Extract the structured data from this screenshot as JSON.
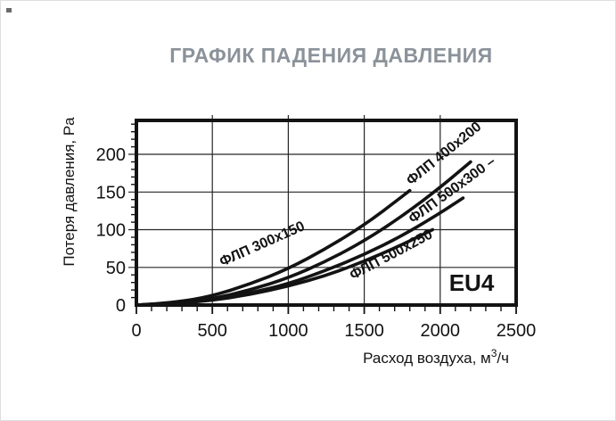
{
  "chart_data": {
    "type": "line",
    "title": "ГРАФИК ПАДЕНИЯ ДАВЛЕНИЯ",
    "xlabel": "Расход воздуха, м³/ч",
    "xlabel_parts": {
      "pre": "Расход воздуха, м",
      "sup": "3",
      "post": "/ч"
    },
    "ylabel": "Потеря давления, Pa",
    "annotation": "EU4",
    "xlim": [
      0,
      2500
    ],
    "ylim": [
      0,
      245
    ],
    "x_ticks": [
      0,
      500,
      1000,
      1500,
      2000,
      2500
    ],
    "y_ticks": [
      0,
      50,
      100,
      150,
      200
    ],
    "x_minor_step": 100,
    "y_minor_step": 10,
    "grid": true,
    "legend": "labels drawn along curves",
    "series": [
      {
        "name": "ФЛП 300x150",
        "label": "ФЛП 300x150",
        "points": [
          [
            0,
            0
          ],
          [
            250,
            3
          ],
          [
            500,
            12
          ],
          [
            750,
            28
          ],
          [
            1000,
            48
          ],
          [
            1250,
            75
          ],
          [
            1500,
            106
          ],
          [
            1750,
            144
          ],
          [
            1800,
            152
          ]
        ],
        "label_pos": {
          "x": 295,
          "y": 277,
          "deg": -24
        }
      },
      {
        "name": "ФЛП 400x200",
        "label": "ФЛП 400x200",
        "points": [
          [
            0,
            0
          ],
          [
            250,
            2
          ],
          [
            500,
            8
          ],
          [
            750,
            20
          ],
          [
            1000,
            36
          ],
          [
            1250,
            58
          ],
          [
            1500,
            85
          ],
          [
            1750,
            118
          ],
          [
            2000,
            156
          ],
          [
            2200,
            190
          ]
        ],
        "label_pos": {
          "x": 500,
          "y": 175,
          "deg": -39
        }
      },
      {
        "name": "ФЛП 500x300",
        "label": "ФЛП 500x300 –",
        "points": [
          [
            0,
            0
          ],
          [
            250,
            2
          ],
          [
            500,
            7
          ],
          [
            750,
            16
          ],
          [
            1000,
            28
          ],
          [
            1250,
            46
          ],
          [
            1500,
            67
          ],
          [
            1750,
            92
          ],
          [
            2000,
            122
          ],
          [
            2150,
            142
          ]
        ],
        "label_pos": {
          "x": 509,
          "y": 216,
          "deg": -36
        }
      },
      {
        "name": "ФЛП 500x250",
        "label": "ФЛП 500x250",
        "points": [
          [
            0,
            0
          ],
          [
            250,
            2
          ],
          [
            500,
            6
          ],
          [
            750,
            14
          ],
          [
            1000,
            25
          ],
          [
            1250,
            39
          ],
          [
            1500,
            58
          ],
          [
            1750,
            80
          ],
          [
            1950,
            100
          ]
        ],
        "label_pos": {
          "x": 440,
          "y": 289,
          "deg": -28
        }
      }
    ],
    "colors": {
      "ink": "#131313",
      "grid": "#262626",
      "title": "#8b929a",
      "background": "#ffffff"
    }
  }
}
